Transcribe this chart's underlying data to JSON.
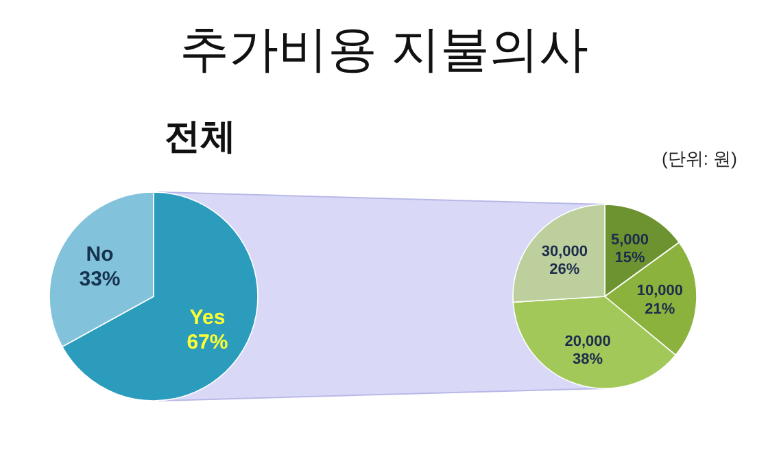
{
  "chart_data": [
    {
      "type": "pie",
      "title": "추가비용 지불의사",
      "subtitle": "전체",
      "categories": [
        "Yes",
        "No"
      ],
      "values": [
        67,
        33
      ],
      "value_labels": [
        "67%",
        "33%"
      ],
      "colors": [
        "#2b9cbc",
        "#82c3db"
      ]
    },
    {
      "type": "pie",
      "annotations": [
        "(단위: 원)"
      ],
      "categories": [
        "5,000",
        "10,000",
        "20,000",
        "30,000"
      ],
      "values": [
        15,
        21,
        38,
        26
      ],
      "value_labels": [
        "15%",
        "21%",
        "38%",
        "26%"
      ],
      "colors": [
        "#6d9230",
        "#8cb23e",
        "#a3c85a",
        "#bccf9c"
      ]
    }
  ]
}
